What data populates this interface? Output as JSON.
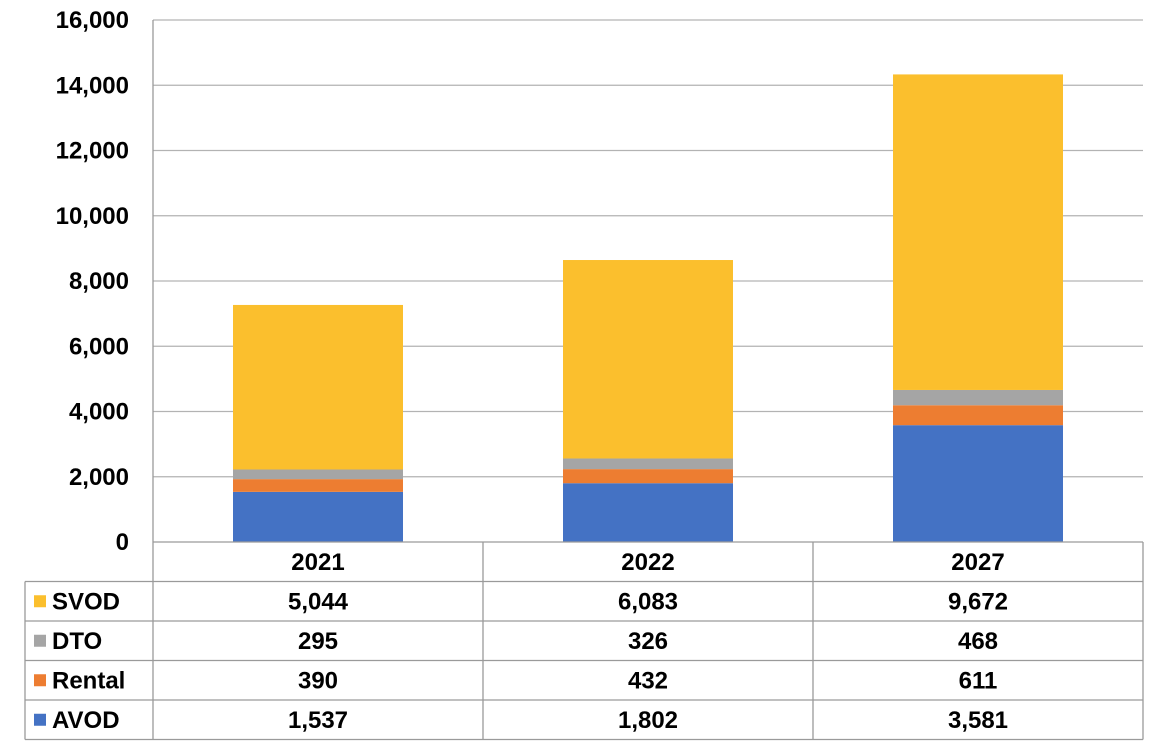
{
  "chart_data": {
    "type": "bar",
    "stacked": true,
    "categories": [
      "2021",
      "2022",
      "2027"
    ],
    "series": [
      {
        "name": "AVOD",
        "values": [
          1537,
          1802,
          3581
        ],
        "color": "#4472c4"
      },
      {
        "name": "Rental",
        "values": [
          390,
          432,
          611
        ],
        "color": "#ed7d31"
      },
      {
        "name": "DTO",
        "values": [
          295,
          326,
          468
        ],
        "color": "#a5a5a5"
      },
      {
        "name": "SVOD",
        "values": [
          5044,
          6083,
          9672
        ],
        "color": "#fbbf2d"
      }
    ],
    "value_labels": {
      "SVOD": [
        "5,044",
        "6,083",
        "9,672"
      ],
      "DTO": [
        "295",
        "326",
        "468"
      ],
      "Rental": [
        "390",
        "432",
        "611"
      ],
      "AVOD": [
        "1,537",
        "1,802",
        "3,581"
      ]
    },
    "table_row_order": [
      "SVOD",
      "DTO",
      "Rental",
      "AVOD"
    ],
    "ylim": [
      0,
      16000
    ],
    "yticks": [
      {
        "value": 0,
        "label": "0"
      },
      {
        "value": 2000,
        "label": "2,000"
      },
      {
        "value": 4000,
        "label": "4,000"
      },
      {
        "value": 6000,
        "label": "6,000"
      },
      {
        "value": 8000,
        "label": "8,000"
      },
      {
        "value": 10000,
        "label": "10,000"
      },
      {
        "value": 12000,
        "label": "12,000"
      },
      {
        "value": 14000,
        "label": "14,000"
      },
      {
        "value": 16000,
        "label": "16,000"
      }
    ],
    "grid": true,
    "legend": "data-table",
    "title": "",
    "xlabel": "",
    "ylabel": ""
  }
}
